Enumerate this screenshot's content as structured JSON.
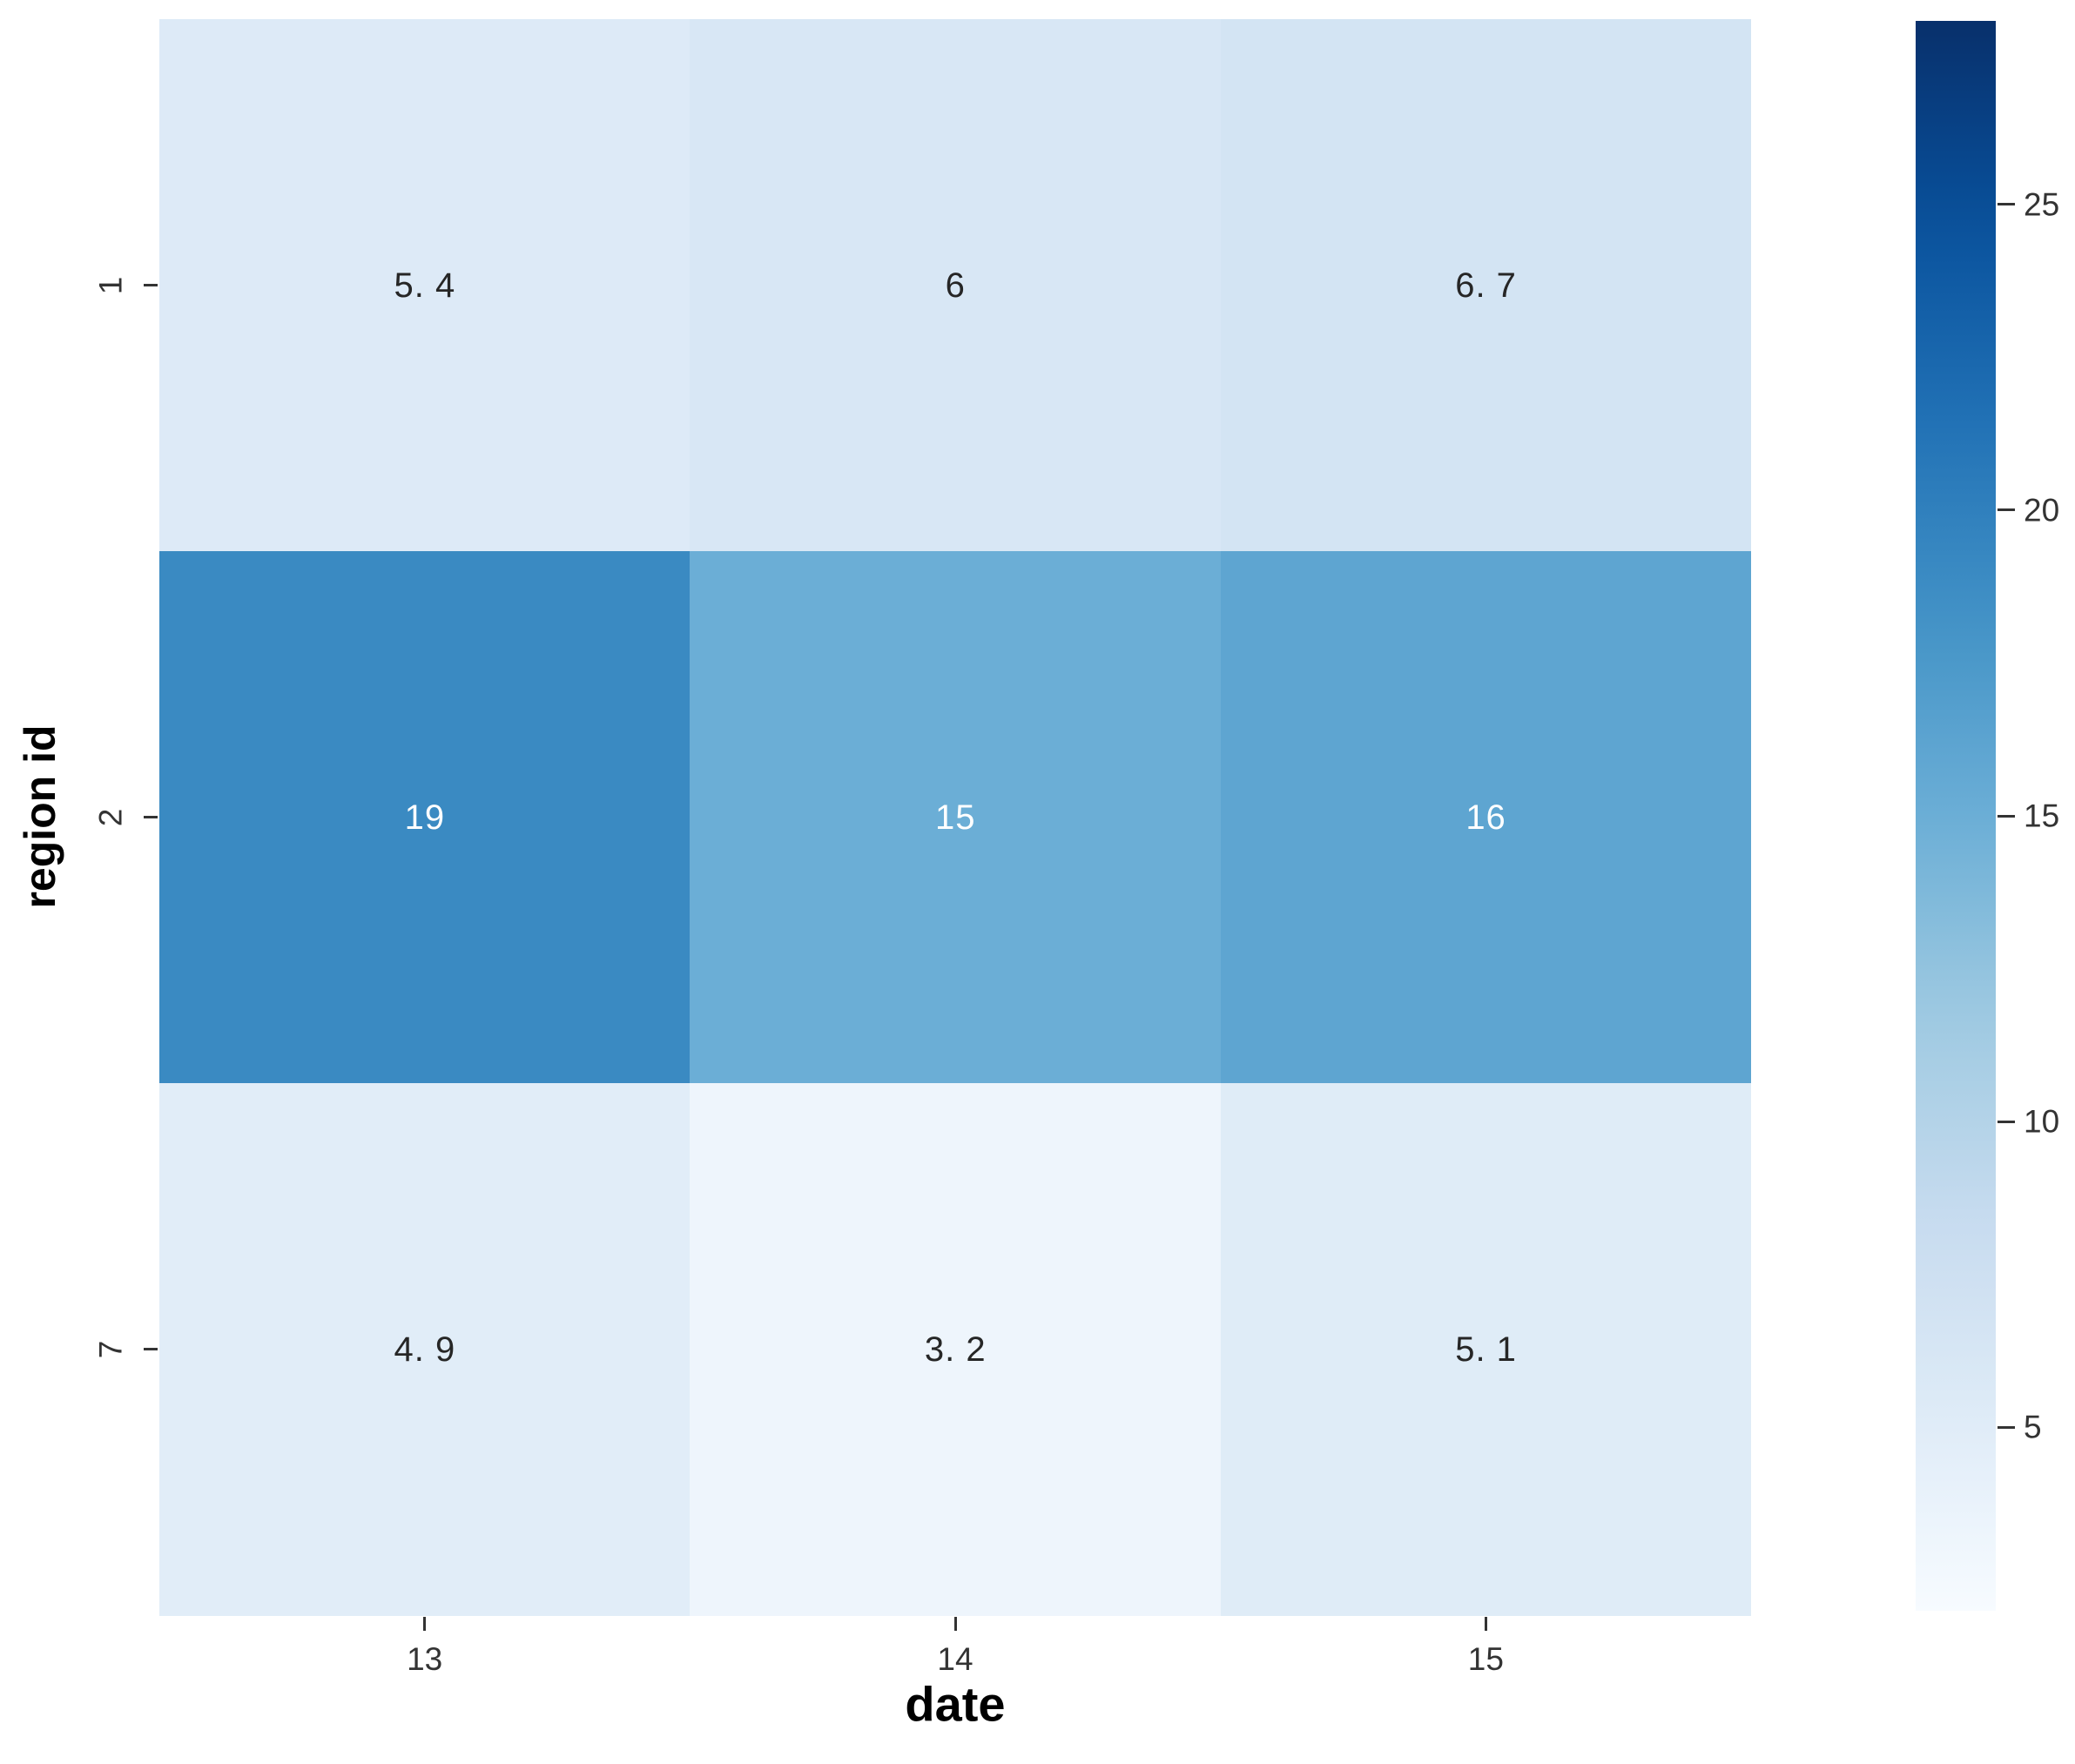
{
  "chart_data": {
    "type": "heatmap",
    "title": "",
    "xlabel": "date",
    "ylabel": "region id",
    "x_categories": [
      "13",
      "14",
      "15"
    ],
    "y_categories": [
      "1",
      "2",
      "7"
    ],
    "values": [
      [
        5.4,
        6.0,
        6.7
      ],
      [
        19.0,
        15.0,
        16.0
      ],
      [
        4.9,
        3.2,
        5.1
      ]
    ],
    "cell_labels": [
      [
        "5. 4",
        "6",
        "6. 7"
      ],
      [
        "19",
        "15",
        "16"
      ],
      [
        "4. 9",
        "3. 2",
        "5. 1"
      ]
    ],
    "grid": false,
    "colorbar": {
      "position": "right",
      "tick_labels": [
        "25",
        "20",
        "15",
        "10",
        "5"
      ],
      "tick_values": [
        25,
        20,
        15,
        10,
        5
      ],
      "vmin": 2,
      "vmax": 28
    },
    "colormap": {
      "name": "Blues",
      "anchors": [
        "#f7fbff",
        "#deebf7",
        "#c6dbef",
        "#9ecae1",
        "#6baed6",
        "#4292c6",
        "#2171b5",
        "#08519c",
        "#08306b"
      ]
    },
    "style_colors": {
      "background": "#ffffff",
      "tick_label": "#333333",
      "axis_label": "#000000",
      "annot_on_dark": "#ffffff",
      "annot_on_light": "#262626"
    }
  }
}
